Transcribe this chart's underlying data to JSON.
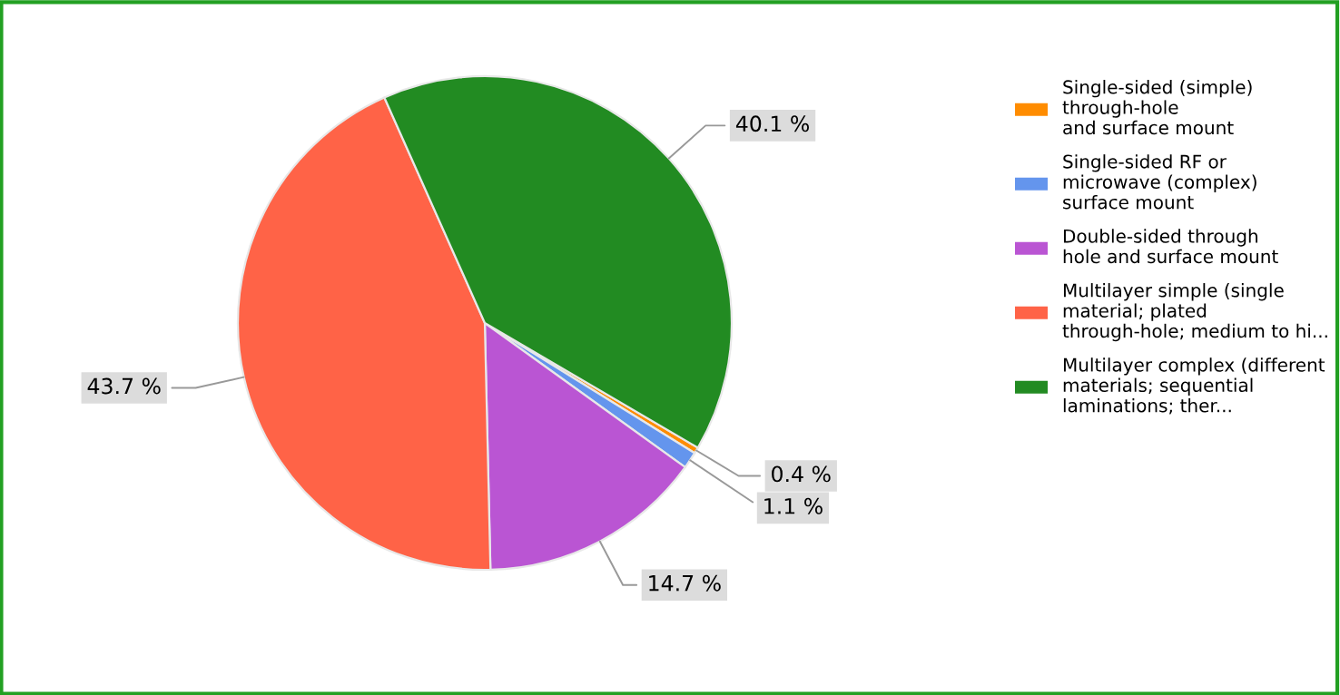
{
  "chart_data": {
    "type": "pie",
    "categories": [
      "Single-sided (simple)\nthrough-hole\nand surface mount",
      "Single-sided RF or\nmicrowave (complex)\nsurface mount",
      "Double-sided through\nhole and surface mount",
      "Multilayer simple (single\nmaterial; plated\nthrough-hole; medium to hi...",
      "Multilayer complex (different\nmaterials; sequential\nlaminations; ther..."
    ],
    "values": [
      0.4,
      1.1,
      14.7,
      43.7,
      40.1
    ],
    "value_labels": [
      "0.4 %",
      "1.1 %",
      "14.7 %",
      "43.7 %",
      "40.1 %"
    ],
    "colors": [
      "#ff8c00",
      "#6495ed",
      "#ba55d3",
      "#ff6347",
      "#228b22"
    ],
    "legend": "right"
  }
}
